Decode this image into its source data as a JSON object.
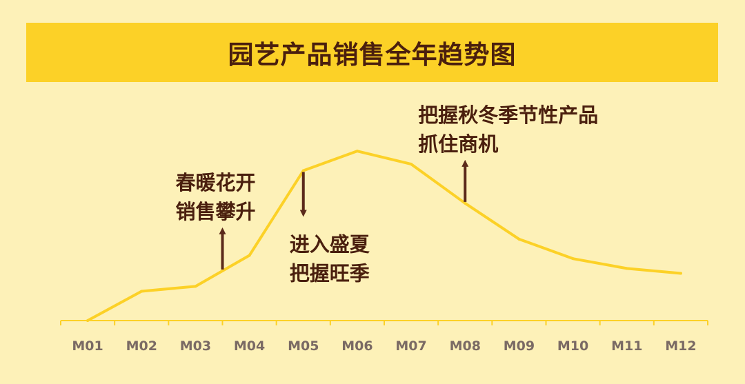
{
  "colors": {
    "background": "#fdf1b8",
    "banner": "#fcd127",
    "line": "#fcd127",
    "text": "#4a1f0e",
    "arrow": "#5b2a1a",
    "tick_label": "#7a6a64"
  },
  "chart_data": {
    "type": "line",
    "title": "园艺产品销售全年趋势图",
    "xlabel": "",
    "ylabel": "",
    "categories": [
      "M01",
      "M02",
      "M03",
      "M04",
      "M05",
      "M06",
      "M07",
      "M08",
      "M09",
      "M10",
      "M11",
      "M12"
    ],
    "series": [
      {
        "values": [
          0,
          18,
          21,
          40,
          92,
          104,
          96,
          72,
          50,
          38,
          32,
          29
        ]
      }
    ],
    "ylim": [
      0,
      110
    ],
    "grid": false,
    "legend": "none",
    "annotations": [
      {
        "lines": [
          "春暖花开",
          "销售攀升"
        ],
        "arrow": "up",
        "at": 2.5
      },
      {
        "lines": [
          "进入盛夏",
          "把握旺季"
        ],
        "arrow": "down",
        "at": 4.0
      },
      {
        "lines": [
          "把握秋冬季节性产品",
          "抓住商机"
        ],
        "arrow": "up",
        "at": 7.0
      }
    ]
  }
}
